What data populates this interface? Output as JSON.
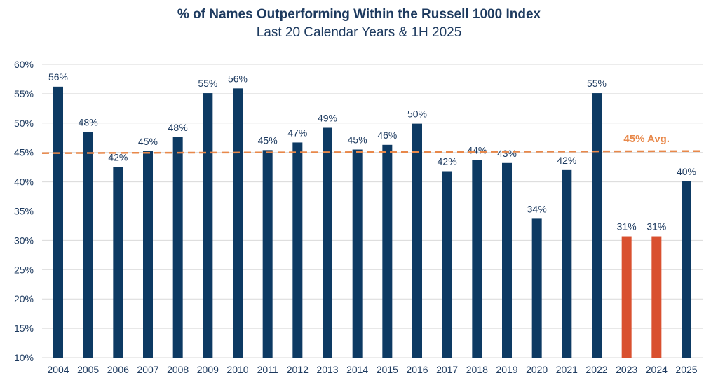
{
  "chart_data": {
    "type": "bar",
    "title": "% of Names Outperforming Within the Russell 1000 Index",
    "subtitle": "Last 20 Calendar Years & 1H 2025",
    "xlabel": "",
    "ylabel": "",
    "categories": [
      "2004",
      "2005",
      "2006",
      "2007",
      "2008",
      "2009",
      "2010",
      "2011",
      "2012",
      "2013",
      "2014",
      "2015",
      "2016",
      "2017",
      "2018",
      "2019",
      "2020",
      "2021",
      "2022",
      "2023",
      "2024",
      "2025"
    ],
    "values": [
      56.2,
      48.5,
      42.5,
      45.2,
      47.6,
      55.1,
      55.9,
      45.4,
      46.7,
      49.2,
      45.5,
      46.3,
      49.9,
      41.8,
      43.7,
      43.2,
      33.7,
      42.0,
      55.1,
      30.7,
      30.7,
      40.1
    ],
    "data_labels": [
      "56%",
      "48%",
      "42%",
      "45%",
      "48%",
      "55%",
      "56%",
      "45%",
      "47%",
      "49%",
      "45%",
      "46%",
      "50%",
      "42%",
      "44%",
      "43%",
      "34%",
      "42%",
      "55%",
      "31%",
      "31%",
      "40%"
    ],
    "highlight_categories": [
      "2023",
      "2024"
    ],
    "ylim": [
      10,
      60
    ],
    "yticks": [
      10,
      15,
      20,
      25,
      30,
      35,
      40,
      45,
      50,
      55,
      60
    ],
    "ytick_labels": [
      "10%",
      "15%",
      "20%",
      "25%",
      "30%",
      "35%",
      "40%",
      "45%",
      "50%",
      "55%",
      "60%"
    ],
    "grid": true,
    "average": {
      "value": 45,
      "label": "45% Avg."
    },
    "colors": {
      "bar": "#0d3a63",
      "highlight": "#d9502f",
      "average": "#e8884a",
      "grid": "#d9d9d9",
      "text": "#1d3a5f"
    }
  }
}
